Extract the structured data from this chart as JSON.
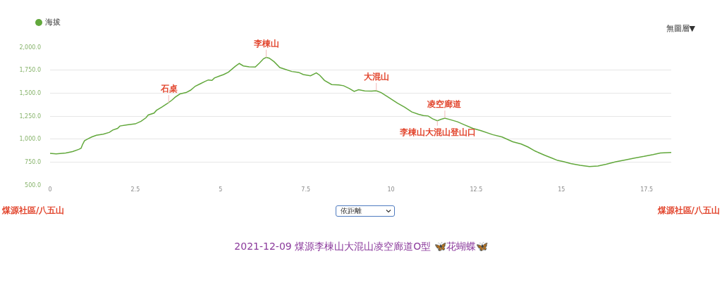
{
  "chart_data": {
    "type": "line",
    "title": "2021-12-09 煤源李棟山大混山凌空廊道O型 🦋花蝴蝶🦋",
    "x": [
      0,
      0.18,
      0.46,
      0.66,
      0.84,
      0.91,
      0.95,
      1.01,
      1.11,
      1.22,
      1.36,
      1.56,
      1.74,
      1.84,
      1.98,
      2.05,
      2.26,
      2.5,
      2.67,
      2.81,
      2.88,
      3.05,
      3.12,
      3.29,
      3.43,
      3.57,
      3.67,
      3.81,
      3.99,
      4.12,
      4.26,
      4.4,
      4.54,
      4.64,
      4.75,
      4.82,
      4.96,
      5.09,
      5.23,
      5.43,
      5.55,
      5.67,
      5.84,
      6.02,
      6.15,
      6.26,
      6.34,
      6.43,
      6.57,
      6.74,
      6.88,
      7.09,
      7.29,
      7.43,
      7.64,
      7.81,
      7.91,
      8.05,
      8.26,
      8.47,
      8.61,
      8.78,
      8.92,
      9.05,
      9.23,
      9.43,
      9.57,
      9.71,
      9.92,
      10.19,
      10.4,
      10.61,
      10.81,
      10.95,
      11.09,
      11.22,
      11.36,
      11.46,
      11.58,
      11.74,
      11.95,
      12.15,
      12.4,
      12.64,
      12.98,
      13.26,
      13.57,
      13.82,
      14.02,
      14.23,
      14.51,
      14.72,
      14.89,
      15.06,
      15.27,
      15.55,
      15.82,
      16.07,
      16.31,
      16.59,
      16.86,
      17.14,
      17.42,
      17.69,
      17.9,
      18.22
    ],
    "series": [
      {
        "name": "海拔",
        "color": "#62a83c",
        "values": [
          844,
          839,
          849,
          864,
          887,
          900,
          938,
          981,
          1002,
          1022,
          1042,
          1053,
          1073,
          1098,
          1116,
          1142,
          1155,
          1165,
          1193,
          1231,
          1262,
          1282,
          1312,
          1350,
          1384,
          1422,
          1455,
          1491,
          1506,
          1531,
          1575,
          1600,
          1626,
          1643,
          1638,
          1664,
          1684,
          1702,
          1727,
          1791,
          1822,
          1796,
          1786,
          1783,
          1829,
          1873,
          1888,
          1880,
          1842,
          1778,
          1761,
          1735,
          1725,
          1702,
          1689,
          1720,
          1694,
          1638,
          1593,
          1588,
          1580,
          1549,
          1519,
          1536,
          1524,
          1521,
          1526,
          1506,
          1455,
          1391,
          1346,
          1295,
          1269,
          1256,
          1251,
          1220,
          1199,
          1213,
          1226,
          1211,
          1188,
          1155,
          1116,
          1091,
          1048,
          1022,
          971,
          946,
          913,
          869,
          823,
          793,
          767,
          755,
          734,
          714,
          701,
          706,
          726,
          752,
          772,
          793,
          811,
          831,
          849,
          854
        ]
      }
    ],
    "xlim": [
      0,
      18.22
    ],
    "ylim": [
      500,
      2000
    ],
    "xticks": [
      0,
      2.5,
      5,
      7.5,
      10,
      12.5,
      15,
      17.5
    ],
    "yticks": [
      {
        "value": 500,
        "label": "500.0"
      },
      {
        "value": 750,
        "label": "750.0"
      },
      {
        "value": 1000,
        "label": "1,000.0"
      },
      {
        "value": 1250,
        "label": "1,250.0"
      },
      {
        "value": 1500,
        "label": "1,500.0"
      },
      {
        "value": 1750,
        "label": "1,750.0"
      },
      {
        "value": 2000,
        "label": "2,000.0"
      }
    ],
    "grid": "y",
    "legend": "top left",
    "annotations": [
      "無圖層▼",
      "依距離",
      "煤源社區/八五山",
      "煤源社區/八五山",
      {
        "text": "石桌",
        "x": 3.48,
        "y": 1395
      },
      {
        "text": "李棟山",
        "x": 6.34,
        "y": 1888
      },
      {
        "text": "大混山",
        "x": 9.57,
        "y": 1526
      },
      {
        "text": "凌空廊道",
        "x": 11.58,
        "y": 1226
      },
      {
        "text": "李棟山大混山登山口",
        "x": 11.36,
        "y": 1199
      }
    ]
  }
}
